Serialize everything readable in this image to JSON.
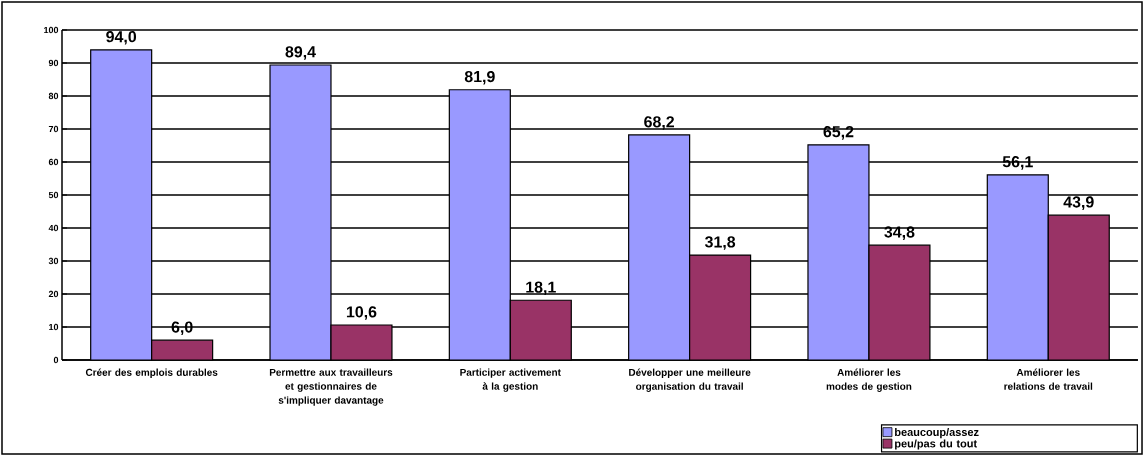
{
  "chart_data": {
    "type": "bar",
    "categories": [
      "Créer des emplois durables",
      "Permettre aux travailleurs et gestionnaires de s'impliquer davantage",
      "Participer activement à la gestion",
      "Développer une meilleure organisation du travail",
      "Améliorer les modes de gestion",
      "Améliorer les relations de travail"
    ],
    "series": [
      {
        "name": "beaucoup/assez",
        "color": "#9999ff",
        "values": [
          94.0,
          89.4,
          81.9,
          68.2,
          65.2,
          56.1
        ],
        "value_labels": [
          "94,0",
          "89,4",
          "81,9",
          "68,2",
          "65,2",
          "56,1"
        ]
      },
      {
        "name": "peu/pas du tout",
        "color": "#993366",
        "values": [
          6.0,
          10.6,
          18.1,
          31.8,
          34.8,
          43.9
        ],
        "value_labels": [
          "6,0",
          "10,6",
          "18,1",
          "31,8",
          "34,8",
          "43,9"
        ]
      }
    ],
    "ylim": [
      0,
      100
    ],
    "yticks": [
      0,
      10,
      20,
      30,
      40,
      50,
      60,
      70,
      80,
      90,
      100
    ],
    "grid": "y",
    "legend": "bottom right"
  }
}
